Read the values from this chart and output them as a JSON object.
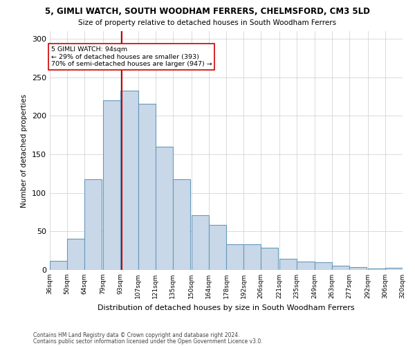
{
  "title": "5, GIMLI WATCH, SOUTH WOODHAM FERRERS, CHELMSFORD, CM3 5LD",
  "subtitle": "Size of property relative to detached houses in South Woodham Ferrers",
  "xlabel": "Distribution of detached houses by size in South Woodham Ferrers",
  "ylabel": "Number of detached properties",
  "footnote1": "Contains HM Land Registry data © Crown copyright and database right 2024.",
  "footnote2": "Contains public sector information licensed under the Open Government Licence v3.0.",
  "annotation_line1": "5 GIMLI WATCH: 94sqm",
  "annotation_line2": "← 29% of detached houses are smaller (393)",
  "annotation_line3": "70% of semi-detached houses are larger (947) →",
  "property_size": 94,
  "bar_left_edges": [
    36,
    50,
    64,
    79,
    93,
    107,
    121,
    135,
    150,
    164,
    178,
    192,
    206,
    221,
    235,
    249,
    263,
    277,
    292,
    306
  ],
  "bar_heights": [
    12,
    40,
    118,
    220,
    233,
    216,
    160,
    118,
    71,
    58,
    33,
    33,
    29,
    14,
    11,
    10,
    5,
    4,
    2,
    3
  ],
  "bin_width": 14,
  "bar_color": "#c8d8e8",
  "bar_edge_color": "#6699bb",
  "vline_color": "#cc0000",
  "vline_x": 94,
  "grid_color": "#cccccc",
  "background_color": "#ffffff",
  "tick_labels": [
    "36sqm",
    "50sqm",
    "64sqm",
    "79sqm",
    "93sqm",
    "107sqm",
    "121sqm",
    "135sqm",
    "150sqm",
    "164sqm",
    "178sqm",
    "192sqm",
    "206sqm",
    "221sqm",
    "235sqm",
    "249sqm",
    "263sqm",
    "277sqm",
    "292sqm",
    "306sqm",
    "320sqm"
  ],
  "ylim": [
    0,
    310
  ],
  "yticks": [
    0,
    50,
    100,
    150,
    200,
    250,
    300
  ]
}
